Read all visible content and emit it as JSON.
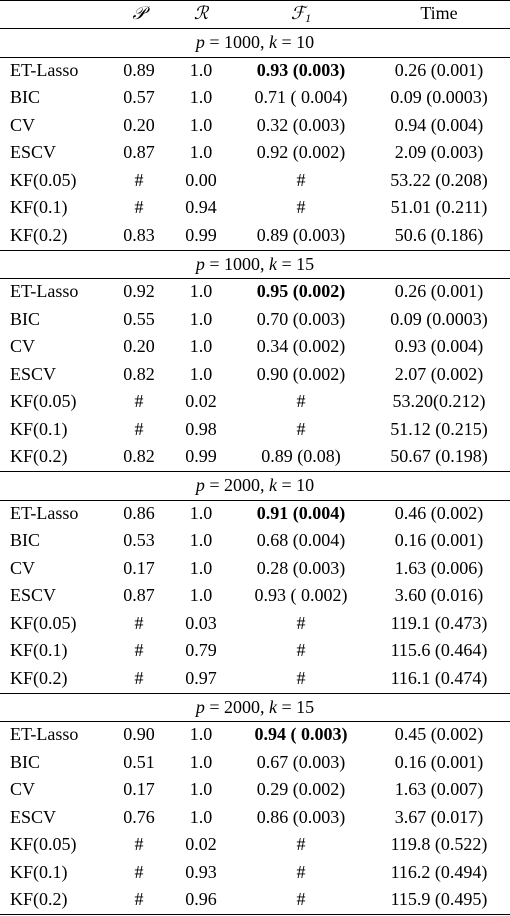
{
  "header": {
    "col0": "",
    "col1": "𝒫",
    "col2": "ℛ",
    "col3": "ℱ",
    "col3_sub": "1",
    "col4": "Time"
  },
  "sections": [
    {
      "p": "2000",
      "k": "15"
    }
  ],
  "groups": [
    {
      "p": "1000",
      "k": "10",
      "rows": [
        {
          "method": "ET-Lasso",
          "P": "0.89",
          "R": "1.0",
          "F1": "0.93 (0.003)",
          "time": "0.26 (0.001)",
          "bold": true
        },
        {
          "method": "BIC",
          "P": "0.57",
          "R": "1.0",
          "F1": "0.71 ( 0.004)",
          "time": "0.09 (0.0003)"
        },
        {
          "method": "CV",
          "P": "0.20",
          "R": "1.0",
          "F1": "0.32 (0.003)",
          "time": "0.94 (0.004)"
        },
        {
          "method": "ESCV",
          "P": "0.87",
          "R": "1.0",
          "F1": "0.92 (0.002)",
          "time": "2.09 (0.003)"
        },
        {
          "method": "KF(0.05)",
          "P": "#",
          "R": "0.00",
          "F1": "#",
          "time": "53.22 (0.208)"
        },
        {
          "method": "KF(0.1)",
          "P": "#",
          "R": "0.94",
          "F1": "#",
          "time": "51.01 (0.211)"
        },
        {
          "method": "KF(0.2)",
          "P": "0.83",
          "R": "0.99",
          "F1": "0.89 (0.003)",
          "time": "50.6 (0.186)"
        }
      ]
    },
    {
      "p": "1000",
      "k": "15",
      "rows": [
        {
          "method": "ET-Lasso",
          "P": "0.92",
          "R": "1.0",
          "F1": "0.95 (0.002)",
          "time": "0.26 (0.001)",
          "bold": true
        },
        {
          "method": "BIC",
          "P": "0.55",
          "R": "1.0",
          "F1": "0.70 (0.003)",
          "time": "0.09 (0.0003)"
        },
        {
          "method": "CV",
          "P": "0.20",
          "R": "1.0",
          "F1": "0.34 (0.002)",
          "time": "0.93 (0.004)"
        },
        {
          "method": "ESCV",
          "P": "0.82",
          "R": "1.0",
          "F1": "0.90 (0.002)",
          "time": "2.07 (0.002)"
        },
        {
          "method": "KF(0.05)",
          "P": "#",
          "R": "0.02",
          "F1": "#",
          "time": "53.20(0.212)"
        },
        {
          "method": "KF(0.1)",
          "P": "#",
          "R": "0.98",
          "F1": "#",
          "time": "51.12 (0.215)"
        },
        {
          "method": "KF(0.2)",
          "P": "0.82",
          "R": "0.99",
          "F1": "0.89 (0.08)",
          "time": "50.67 (0.198)"
        }
      ]
    },
    {
      "p": "2000",
      "k": "10",
      "rows": [
        {
          "method": "ET-Lasso",
          "P": "0.86",
          "R": "1.0",
          "F1": "0.91 (0.004)",
          "time": "0.46 (0.002)",
          "bold": true
        },
        {
          "method": "BIC",
          "P": "0.53",
          "R": "1.0",
          "F1": "0.68 (0.004)",
          "time": "0.16 (0.001)"
        },
        {
          "method": "CV",
          "P": "0.17",
          "R": "1.0",
          "F1": "0.28 (0.003)",
          "time": "1.63 (0.006)"
        },
        {
          "method": "ESCV",
          "P": "0.87",
          "R": "1.0",
          "F1": "0.93 ( 0.002)",
          "time": "3.60 (0.016)"
        },
        {
          "method": "KF(0.05)",
          "P": "#",
          "R": "0.03",
          "F1": "#",
          "time": "119.1 (0.473)"
        },
        {
          "method": "KF(0.1)",
          "P": "#",
          "R": "0.79",
          "F1": "#",
          "time": "115.6 (0.464)"
        },
        {
          "method": "KF(0.2)",
          "P": "#",
          "R": "0.97",
          "F1": "#",
          "time": "116.1 (0.474)"
        }
      ]
    },
    {
      "p": "2000",
      "k": "15",
      "rows": [
        {
          "method": "ET-Lasso",
          "P": "0.90",
          "R": "1.0",
          "F1": "0.94 ( 0.003)",
          "time": "0.45 (0.002)",
          "bold": true
        },
        {
          "method": "BIC",
          "P": "0.51",
          "R": "1.0",
          "F1": "0.67 (0.003)",
          "time": "0.16 (0.001)"
        },
        {
          "method": "CV",
          "P": "0.17",
          "R": "1.0",
          "F1": "0.29 (0.002)",
          "time": "1.63 (0.007)"
        },
        {
          "method": "ESCV",
          "P": "0.76",
          "R": "1.0",
          "F1": "0.86 (0.003)",
          "time": "3.67 (0.017)"
        },
        {
          "method": "KF(0.05)",
          "P": "#",
          "R": "0.02",
          "F1": "#",
          "time": "119.8 (0.522)"
        },
        {
          "method": "KF(0.1)",
          "P": "#",
          "R": "0.93",
          "F1": "#",
          "time": "116.2 (0.494)"
        },
        {
          "method": "KF(0.2)",
          "P": "#",
          "R": "0.96",
          "F1": "#",
          "time": "115.9 (0.495)"
        }
      ]
    }
  ]
}
